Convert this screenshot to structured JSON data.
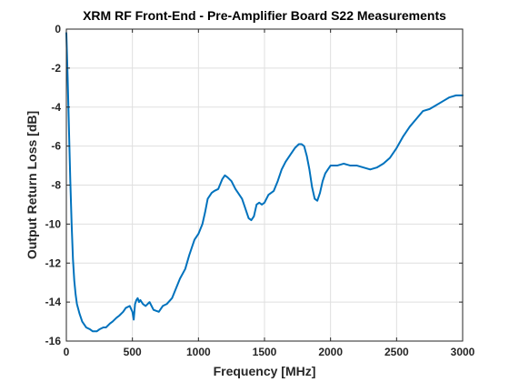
{
  "chart_data": {
    "type": "line",
    "title": "XRM RF Front-End - Pre-Amplifier Board S22 Measurements",
    "xlabel": "Frequency [MHz]",
    "ylabel": "Output Return Loss [dB]",
    "xlim": [
      0,
      3000
    ],
    "ylim": [
      -16,
      0
    ],
    "xticks": [
      0,
      500,
      1000,
      1500,
      2000,
      2500,
      3000
    ],
    "yticks": [
      0,
      -2,
      -4,
      -6,
      -8,
      -10,
      -12,
      -14,
      -16
    ],
    "grid": true,
    "legend": "none",
    "colors": {
      "series": "#0072bd"
    },
    "series": [
      {
        "name": "",
        "x": [
          0,
          10,
          20,
          30,
          40,
          50,
          60,
          70,
          80,
          100,
          120,
          150,
          180,
          200,
          230,
          250,
          280,
          300,
          330,
          350,
          380,
          400,
          430,
          450,
          480,
          500,
          510,
          520,
          530,
          540,
          550,
          560,
          580,
          600,
          630,
          660,
          700,
          730,
          760,
          800,
          830,
          860,
          900,
          930,
          950,
          970,
          1000,
          1030,
          1050,
          1070,
          1100,
          1120,
          1150,
          1180,
          1200,
          1220,
          1250,
          1280,
          1300,
          1330,
          1350,
          1370,
          1380,
          1400,
          1420,
          1440,
          1460,
          1480,
          1500,
          1530,
          1550,
          1570,
          1600,
          1630,
          1660,
          1700,
          1730,
          1760,
          1780,
          1800,
          1820,
          1840,
          1860,
          1880,
          1900,
          1920,
          1940,
          1960,
          1980,
          2000,
          2050,
          2100,
          2150,
          2200,
          2250,
          2300,
          2350,
          2400,
          2450,
          2500,
          2550,
          2600,
          2650,
          2700,
          2750,
          2800,
          2850,
          2900,
          2950,
          3000
        ],
        "y": [
          -0.2,
          -2.5,
          -5.2,
          -7.8,
          -10.0,
          -11.8,
          -12.9,
          -13.6,
          -14.1,
          -14.6,
          -15.0,
          -15.3,
          -15.4,
          -15.5,
          -15.5,
          -15.4,
          -15.3,
          -15.3,
          -15.1,
          -15.0,
          -14.8,
          -14.7,
          -14.5,
          -14.3,
          -14.2,
          -14.5,
          -14.9,
          -14.1,
          -13.9,
          -13.8,
          -14.0,
          -13.9,
          -14.1,
          -14.2,
          -14.0,
          -14.4,
          -14.5,
          -14.2,
          -14.1,
          -13.8,
          -13.3,
          -12.8,
          -12.3,
          -11.6,
          -11.2,
          -10.8,
          -10.5,
          -10.0,
          -9.4,
          -8.7,
          -8.4,
          -8.3,
          -8.2,
          -7.7,
          -7.5,
          -7.6,
          -7.8,
          -8.2,
          -8.4,
          -8.7,
          -9.1,
          -9.5,
          -9.7,
          -9.8,
          -9.6,
          -9.0,
          -8.9,
          -9.0,
          -8.9,
          -8.5,
          -8.4,
          -8.3,
          -7.8,
          -7.2,
          -6.8,
          -6.4,
          -6.1,
          -5.9,
          -5.9,
          -6.0,
          -6.5,
          -7.2,
          -8.1,
          -8.7,
          -8.8,
          -8.4,
          -7.8,
          -7.4,
          -7.2,
          -7.0,
          -7.0,
          -6.9,
          -7.0,
          -7.0,
          -7.1,
          -7.2,
          -7.1,
          -6.9,
          -6.6,
          -6.1,
          -5.5,
          -5.0,
          -4.6,
          -4.2,
          -4.1,
          -3.9,
          -3.7,
          -3.5,
          -3.4,
          -3.4
        ]
      }
    ]
  }
}
